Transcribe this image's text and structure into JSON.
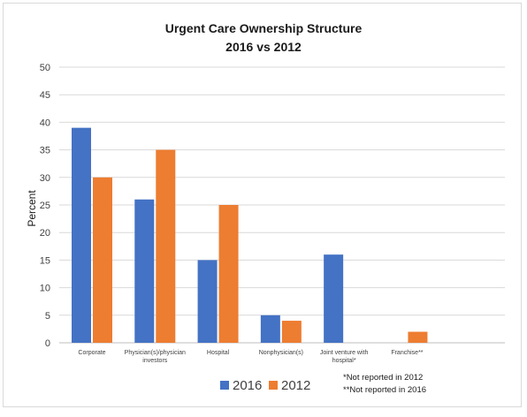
{
  "chart_data": {
    "type": "bar",
    "title": [
      "Urgent Care Ownership Structure",
      "2016 vs 2012"
    ],
    "ylabel": "Percent",
    "xlabel": "",
    "ylim": [
      0,
      50
    ],
    "yticks": [
      0,
      5,
      10,
      15,
      20,
      25,
      30,
      35,
      40,
      45,
      50
    ],
    "grid": true,
    "legend_position": "bottom",
    "categories": [
      [
        "Corporate"
      ],
      [
        "Physician(s)/physician",
        "investors"
      ],
      [
        "Hospital"
      ],
      [
        "Nonphysician(s)"
      ],
      [
        "Joint venture with",
        "hospital*"
      ],
      [
        "Franchise**"
      ]
    ],
    "series": [
      {
        "name": "2016",
        "color": "#4472c4",
        "values": [
          39,
          26,
          15,
          5,
          16,
          null
        ]
      },
      {
        "name": "2012",
        "color": "#ed7d31",
        "values": [
          30,
          35,
          25,
          4,
          null,
          2
        ]
      }
    ],
    "notes": [
      "*Not reported in 2012",
      "**Not reported in 2016"
    ]
  }
}
